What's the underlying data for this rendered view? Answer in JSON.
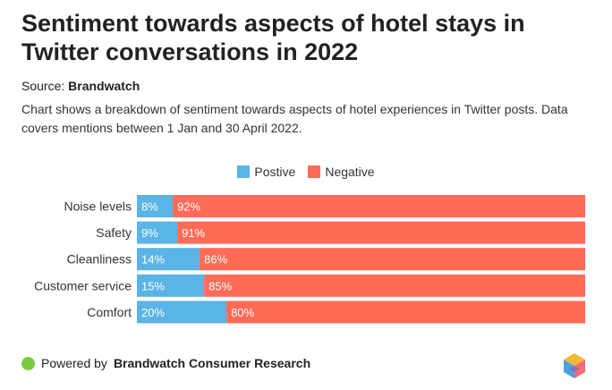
{
  "title": "Sentiment towards aspects of hotel stays in Twitter conversations in 2022",
  "source_label": "Source:",
  "source_name": "Brandwatch",
  "description": "Chart shows a breakdown of sentiment towards aspects of hotel experiences in Twitter posts. Data covers mentions between 1 Jan and 30 April 2022.",
  "footer": {
    "prefix": "Powered by",
    "brand": "Brandwatch Consumer Research"
  },
  "colors": {
    "positive": "#5ab4e5",
    "negative": "#ff6b57",
    "footer_dot": "#7ac943"
  },
  "icons": [
    "brandwatch-logo-icon",
    "green-dot-icon"
  ],
  "chart_data": {
    "type": "bar",
    "orientation": "horizontal",
    "stacked": true,
    "categories": [
      "Noise levels",
      "Safety",
      "Cleanliness",
      "Customer service",
      "Comfort"
    ],
    "series": [
      {
        "name": "Postive",
        "values": [
          8,
          9,
          14,
          15,
          20
        ],
        "color": "#5ab4e5"
      },
      {
        "name": "Negative",
        "values": [
          92,
          91,
          86,
          85,
          80
        ],
        "color": "#ff6b57"
      }
    ],
    "value_suffix": "%",
    "xlim": [
      0,
      100
    ],
    "legend": "top-center",
    "grid": false
  }
}
